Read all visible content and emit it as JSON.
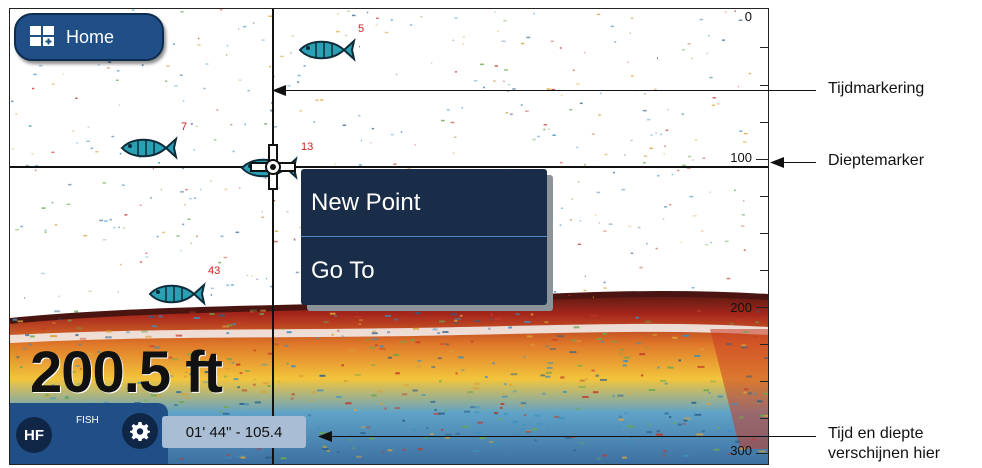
{
  "home": {
    "label": "Home",
    "icon": "grid-icon"
  },
  "menu": {
    "items": [
      {
        "label": "New Point"
      },
      {
        "label": "Go To"
      }
    ]
  },
  "depth_readout": "200.5 ft",
  "depth_scale": [
    "0",
    "100",
    "200",
    "300"
  ],
  "fish_targets": [
    "5",
    "7",
    "13",
    "43"
  ],
  "bottom_panel": {
    "frequency": "HF",
    "mode": "FISH",
    "settings_icon": "gear-icon"
  },
  "time_depth_readout": "01' 44\" - 105.4",
  "callouts": {
    "time_marker": "Tijdmarkering",
    "depth_marker": "Dieptemarker",
    "time_depth_line1": "Tijd en diepte",
    "time_depth_line2": "verschijnen hier"
  },
  "colors": {
    "panel": "#1f4f86",
    "menu": "#1a2d48",
    "readout_bg": "#a9bdd4",
    "fish_label": "#d21b1b"
  }
}
